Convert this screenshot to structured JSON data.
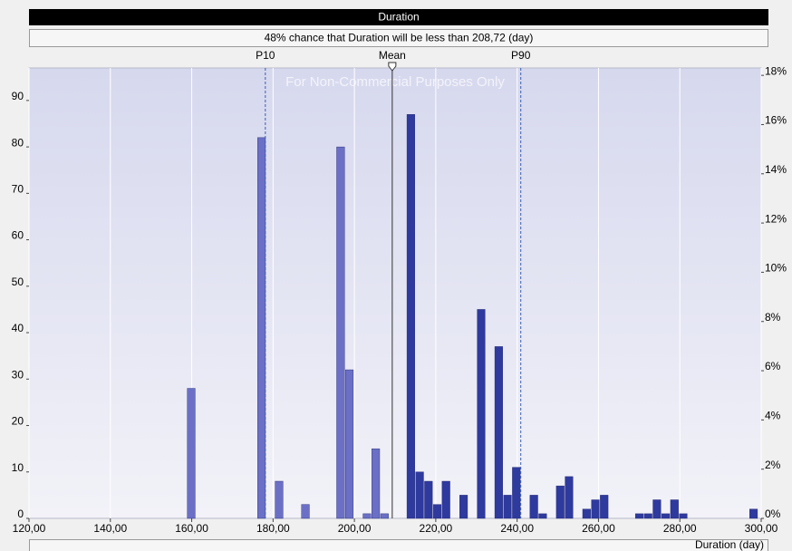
{
  "chart_data": {
    "type": "histogram",
    "title": "Duration",
    "subtitle": "48% chance that Duration will be less than 208,72 (day)",
    "watermark": "For Non-Commercial Purposes Only",
    "x_label": "Duration (day)",
    "bins": [
      158.8,
      160.96,
      163.12,
      165.28,
      167.44,
      169.6,
      171.76,
      173.92,
      176.08,
      178.24,
      180.4,
      182.56,
      184.72,
      186.88,
      189.04,
      191.2,
      193.36,
      195.52,
      197.68,
      199.84,
      202.0,
      204.16,
      206.32,
      208.48,
      210.64,
      212.8,
      214.96,
      217.12,
      219.28,
      221.44,
      223.6,
      225.76,
      227.92,
      230.08,
      232.24,
      234.4,
      236.56,
      238.72,
      240.88,
      243.04,
      245.2,
      247.36,
      249.52,
      251.68,
      253.84,
      256.0,
      258.16,
      260.32,
      262.48,
      264.64,
      266.8,
      268.96,
      271.12,
      273.28,
      275.44,
      277.6,
      279.76,
      281.92,
      284.08,
      286.24,
      288.4,
      290.56,
      292.72,
      294.88,
      297.04,
      299.2
    ],
    "values": [
      28,
      0,
      0,
      0,
      0,
      0,
      0,
      0,
      82,
      0,
      8,
      0,
      0,
      3,
      0,
      0,
      0,
      80,
      32,
      0,
      1,
      15,
      1,
      0,
      0,
      87,
      10,
      8,
      3,
      8,
      0,
      5,
      0,
      45,
      0,
      37,
      5,
      11,
      0,
      5,
      1,
      0,
      7,
      9,
      0,
      2,
      4,
      5,
      0,
      0,
      0,
      1,
      1,
      4,
      1,
      4,
      1,
      0,
      0,
      0,
      0,
      0,
      0,
      0,
      2
    ],
    "color": "#2f3a9e",
    "color_below_mean": "#6b70c6",
    "markers": [
      {
        "label": "P10",
        "value": 178.1
      },
      {
        "label": "Mean",
        "value": 209.3
      },
      {
        "label": "P90",
        "value": 240.9
      }
    ],
    "xlim": [
      120,
      300
    ],
    "xticks": [
      {
        "value": 120,
        "label": "120,00"
      },
      {
        "value": 140,
        "label": "140,00"
      },
      {
        "value": 160,
        "label": "160,00"
      },
      {
        "value": 180,
        "label": "180,00"
      },
      {
        "value": 200,
        "label": "200,00"
      },
      {
        "value": 220,
        "label": "220,00"
      },
      {
        "value": 240,
        "label": "240,00"
      },
      {
        "value": 260,
        "label": "260,00"
      },
      {
        "value": 280,
        "label": "280,00"
      },
      {
        "value": 300,
        "label": "300,00"
      }
    ],
    "ylim": [
      0,
      97
    ],
    "yticks": [
      0,
      10,
      20,
      30,
      40,
      50,
      60,
      70,
      80,
      90
    ],
    "y2lim": [
      0,
      18.3
    ],
    "y2ticks": [
      {
        "value": 0,
        "label": "0%"
      },
      {
        "value": 2,
        "label": "2%"
      },
      {
        "value": 4,
        "label": "4%"
      },
      {
        "value": 6,
        "label": "6%"
      },
      {
        "value": 8,
        "label": "8%"
      },
      {
        "value": 10,
        "label": "10%"
      },
      {
        "value": 12,
        "label": "12%"
      },
      {
        "value": 14,
        "label": "14%"
      },
      {
        "value": 16,
        "label": "16%"
      },
      {
        "value": 18,
        "label": "18%"
      }
    ],
    "grid": true
  }
}
